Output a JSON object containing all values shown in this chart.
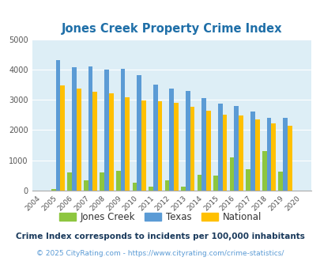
{
  "title": "Jones Creek Property Crime Index",
  "years": [
    2004,
    2005,
    2006,
    2007,
    2008,
    2009,
    2010,
    2011,
    2012,
    2013,
    2014,
    2015,
    2016,
    2017,
    2018,
    2019,
    2020
  ],
  "jones_creek": [
    0,
    50,
    600,
    350,
    600,
    650,
    250,
    130,
    350,
    120,
    520,
    500,
    1100,
    700,
    1300,
    620,
    0
  ],
  "texas": [
    0,
    4300,
    4070,
    4100,
    4000,
    4020,
    3800,
    3500,
    3380,
    3280,
    3060,
    2860,
    2780,
    2600,
    2400,
    2400,
    0
  ],
  "national": [
    0,
    3460,
    3360,
    3260,
    3220,
    3070,
    2970,
    2950,
    2900,
    2760,
    2630,
    2510,
    2470,
    2350,
    2220,
    2140,
    0
  ],
  "jones_creek_color": "#8dc63f",
  "texas_color": "#5b9bd5",
  "national_color": "#ffc000",
  "fig_bg_color": "#ffffff",
  "plot_bg_color": "#ddeef6",
  "title_color": "#1f6fa8",
  "ylim": [
    0,
    5000
  ],
  "yticks": [
    0,
    1000,
    2000,
    3000,
    4000,
    5000
  ],
  "legend_labels": [
    "Jones Creek",
    "Texas",
    "National"
  ],
  "legend_text_color": "#333333",
  "footnote1": "Crime Index corresponds to incidents per 100,000 inhabitants",
  "footnote2": "© 2025 CityRating.com - https://www.cityrating.com/crime-statistics/",
  "footnote1_color": "#1a3a5c",
  "footnote2_color": "#5b9bd5"
}
